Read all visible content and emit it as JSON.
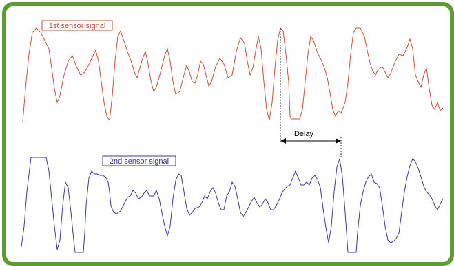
{
  "labels": {
    "sensor1": "1st sensor signal",
    "sensor2": "2nd sensor signal",
    "delay": "Delay"
  },
  "colors": {
    "frame": "#5a9e2f",
    "sensor1": "#c8503a",
    "sensor2": "#3a3a9a",
    "annotation": "#000000"
  }
}
